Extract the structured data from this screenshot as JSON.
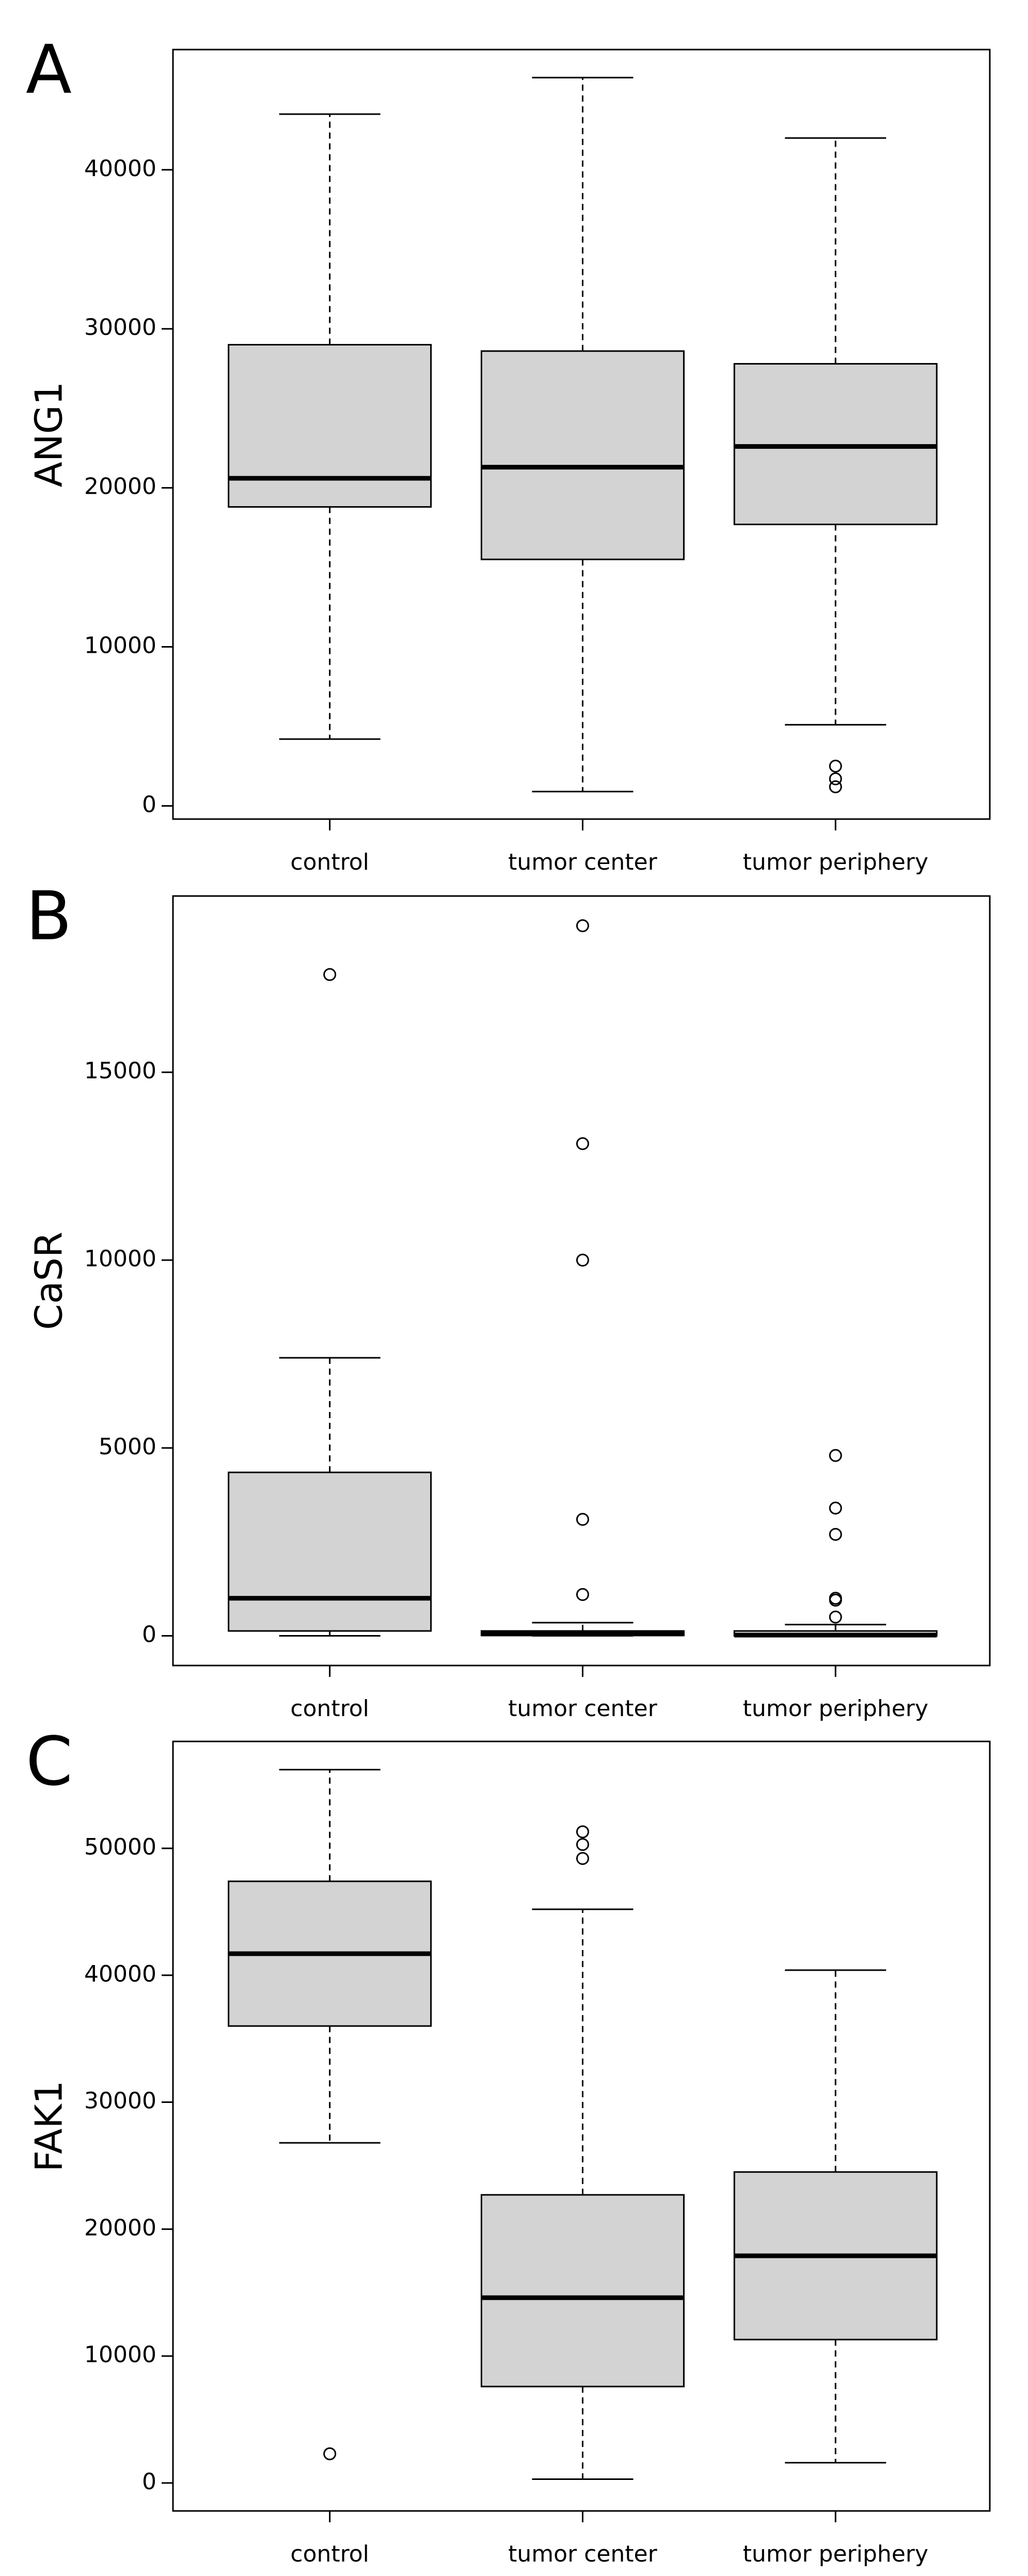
{
  "chart_data": [
    {
      "type": "box",
      "panel_label": "A",
      "y_label": "ANG1",
      "categories": [
        "control",
        "tumor center",
        "tumor periphery"
      ],
      "boxes": [
        {
          "whisker_low": 4200,
          "q1": 18800,
          "median": 20600,
          "q3": 29000,
          "whisker_high": 43500,
          "outliers": []
        },
        {
          "whisker_low": 900,
          "q1": 15500,
          "median": 21300,
          "q3": 28600,
          "whisker_high": 45800,
          "outliers": []
        },
        {
          "whisker_low": 5100,
          "q1": 17700,
          "median": 22600,
          "q3": 27800,
          "whisker_high": 42000,
          "outliers": [
            2500,
            1700,
            1200
          ]
        }
      ],
      "color": "#d3d3d3",
      "ylim": [
        -830,
        47560
      ],
      "yticks": [
        0,
        10000,
        20000,
        30000,
        40000
      ]
    },
    {
      "type": "box",
      "panel_label": "B",
      "y_label": "CaSR",
      "categories": [
        "control",
        "tumor center",
        "tumor periphery"
      ],
      "boxes": [
        {
          "whisker_low": 0,
          "q1": 130,
          "median": 1000,
          "q3": 4350,
          "whisker_high": 7400,
          "outliers": [
            17600
          ]
        },
        {
          "whisker_low": 0,
          "q1": 10,
          "median": 50,
          "q3": 130,
          "whisker_high": 350,
          "outliers": [
            18900,
            13100,
            10000,
            3100,
            1100
          ]
        },
        {
          "whisker_low": 0,
          "q1": 0,
          "median": 20,
          "q3": 130,
          "whisker_high": 300,
          "outliers": [
            4800,
            3400,
            2700,
            1000,
            950,
            500
          ]
        }
      ],
      "color": "#d3d3d3",
      "ylim": [
        -790,
        19690
      ],
      "yticks": [
        0,
        5000,
        10000,
        15000
      ]
    },
    {
      "type": "box",
      "panel_label": "C",
      "y_label": "FAK1",
      "categories": [
        "control",
        "tumor center",
        "tumor periphery"
      ],
      "boxes": [
        {
          "whisker_low": 26800,
          "q1": 36000,
          "median": 41700,
          "q3": 47400,
          "whisker_high": 56200,
          "outliers": [
            2300
          ]
        },
        {
          "whisker_low": 300,
          "q1": 7600,
          "median": 14600,
          "q3": 22700,
          "whisker_high": 45200,
          "outliers": [
            51300,
            50300,
            49200
          ]
        },
        {
          "whisker_low": 1600,
          "q1": 11300,
          "median": 17900,
          "q3": 24500,
          "whisker_high": 40400,
          "outliers": []
        }
      ],
      "color": "#d3d3d3",
      "ylim": [
        -2200,
        58420
      ],
      "yticks": [
        0,
        10000,
        20000,
        30000,
        40000,
        50000
      ]
    }
  ]
}
